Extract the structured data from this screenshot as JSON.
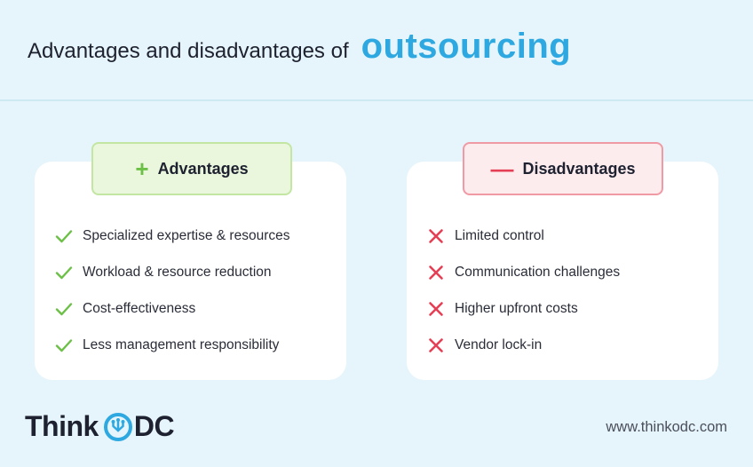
{
  "header": {
    "title_main": "Advantages and disadvantages of",
    "title_accent": "outsourcing"
  },
  "advantages": {
    "badge_sign": "+",
    "label": "Advantages",
    "items": [
      "Specialized expertise & resources",
      "Workload & resource reduction",
      "Cost-effectiveness",
      "Less management responsibility"
    ]
  },
  "disadvantages": {
    "badge_sign": "—",
    "label": "Disadvantages",
    "items": [
      "Limited control",
      "Communication challenges",
      "Higher upfront costs",
      "Vendor lock-in"
    ]
  },
  "footer": {
    "logo_left": "Think",
    "logo_right": "DC",
    "url": "www.thinkodc.com"
  },
  "colors": {
    "accent": "#2ea8e0",
    "check": "#6cc046",
    "cross": "#e53f56"
  },
  "icons": {
    "advantage_item": "check-icon",
    "disadvantage_item": "cross-icon",
    "logo_mark": "circuit-o-icon"
  }
}
